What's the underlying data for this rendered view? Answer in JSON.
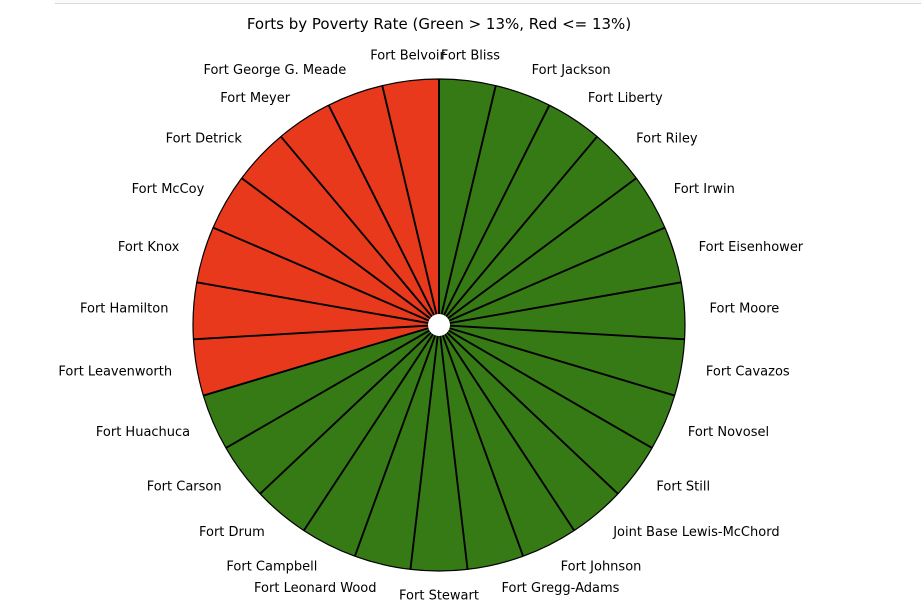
{
  "chart_data": {
    "type": "pie",
    "title": "Forts by Poverty Rate (Green > 13%, Red <= 13%)",
    "start": "12 o'clock",
    "direction": "clockwise",
    "slices": [
      {
        "label": "Fort Bliss",
        "value": 1,
        "category": "green"
      },
      {
        "label": "Fort Jackson",
        "value": 1,
        "category": "green"
      },
      {
        "label": "Fort Liberty",
        "value": 1,
        "category": "green"
      },
      {
        "label": "Fort Riley",
        "value": 1,
        "category": "green"
      },
      {
        "label": "Fort Irwin",
        "value": 1,
        "category": "green"
      },
      {
        "label": "Fort Eisenhower",
        "value": 1,
        "category": "green"
      },
      {
        "label": "Fort Moore",
        "value": 1,
        "category": "green"
      },
      {
        "label": "Fort Cavazos",
        "value": 1,
        "category": "green"
      },
      {
        "label": "Fort Novosel",
        "value": 1,
        "category": "green"
      },
      {
        "label": "Fort Still",
        "value": 1,
        "category": "green"
      },
      {
        "label": "Joint Base Lewis-McChord",
        "value": 1,
        "category": "green"
      },
      {
        "label": "Fort Johnson",
        "value": 1,
        "category": "green"
      },
      {
        "label": "Fort Gregg-Adams",
        "value": 1,
        "category": "green"
      },
      {
        "label": "Fort Stewart",
        "value": 1,
        "category": "green"
      },
      {
        "label": "Fort Leonard Wood",
        "value": 1,
        "category": "green"
      },
      {
        "label": "Fort Campbell",
        "value": 1,
        "category": "green"
      },
      {
        "label": "Fort Drum",
        "value": 1,
        "category": "green"
      },
      {
        "label": "Fort Carson",
        "value": 1,
        "category": "green"
      },
      {
        "label": "Fort Huachuca",
        "value": 1,
        "category": "green"
      },
      {
        "label": "Fort Leavenworth",
        "value": 1,
        "category": "red"
      },
      {
        "label": "Fort Hamilton",
        "value": 1,
        "category": "red"
      },
      {
        "label": "Fort Knox",
        "value": 1,
        "category": "red"
      },
      {
        "label": "Fort McCoy",
        "value": 1,
        "category": "red"
      },
      {
        "label": "Fort Detrick",
        "value": 1,
        "category": "red"
      },
      {
        "label": "Fort Meyer",
        "value": 1,
        "category": "red"
      },
      {
        "label": "Fort George G. Meade",
        "value": 1,
        "category": "red"
      },
      {
        "label": "Fort Belvoir",
        "value": 1,
        "category": "red"
      }
    ],
    "colors": {
      "green": "#357a14",
      "red": "#e8391d",
      "edge": "#000000",
      "gap": "#ffffff"
    }
  }
}
